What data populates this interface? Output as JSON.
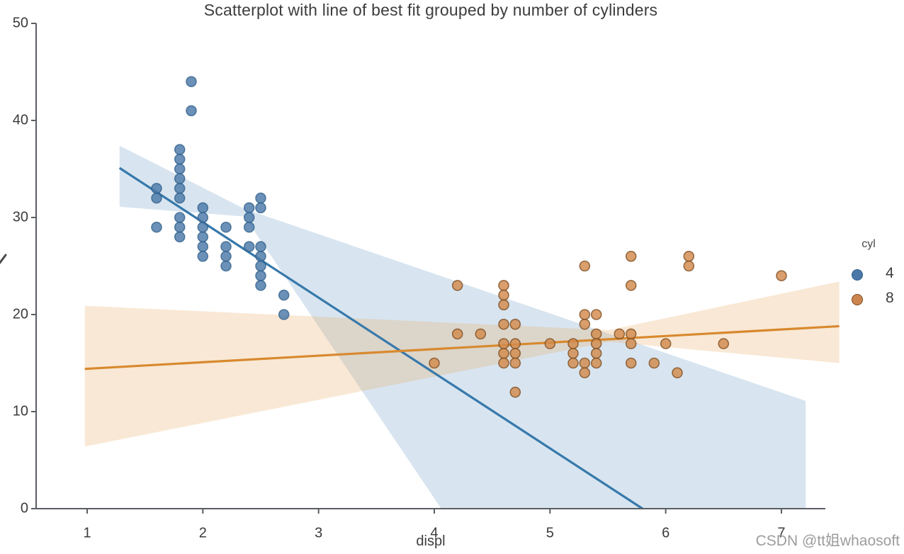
{
  "title": "Scatterplot with line of best fit grouped by number of cylinders",
  "x_axis_label": "displ",
  "watermark": "CSDN @tt姐whaosoft",
  "legend": {
    "title": "cyl",
    "items": [
      {
        "label": "4",
        "color": "#4a79a8"
      },
      {
        "label": "8",
        "color": "#cd8550"
      }
    ]
  },
  "axes": {
    "x_ticks": [
      "1",
      "2",
      "3",
      "4",
      "5",
      "6",
      "7"
    ],
    "y_ticks": [
      "0",
      "10",
      "20",
      "30",
      "40",
      "50"
    ]
  },
  "chart_data": {
    "type": "scatter",
    "title": "Scatterplot with line of best fit grouped by number of cylinders",
    "xlabel": "displ",
    "ylabel": "",
    "xlim": [
      0.56,
      7.38
    ],
    "ylim": [
      0,
      50
    ],
    "x_tick_values": [
      1,
      2,
      3,
      4,
      5,
      6,
      7
    ],
    "y_tick_values": [
      0,
      10,
      20,
      30,
      40,
      50
    ],
    "grid": false,
    "legend_position": "right",
    "series": [
      {
        "name": "4",
        "marker_color": "#4a79a8",
        "marker_edge_color": "#2f5f8a",
        "line_color": "#3779ab",
        "band_color": "#6f9ec7",
        "regression_line": {
          "x": [
            1.28,
            5.8
          ],
          "y": [
            35.1,
            0
          ]
        },
        "ci_polygon": [
          [
            1.28,
            37.4
          ],
          [
            2.36,
            30.9
          ],
          [
            7.21,
            11.1
          ],
          [
            7.21,
            0
          ],
          [
            4.06,
            0
          ],
          [
            2.36,
            30.1
          ],
          [
            1.28,
            31.1
          ]
        ],
        "points": [
          [
            1.6,
            33
          ],
          [
            1.6,
            32
          ],
          [
            1.6,
            29
          ],
          [
            1.8,
            37
          ],
          [
            1.8,
            36
          ],
          [
            1.8,
            35
          ],
          [
            1.8,
            34
          ],
          [
            1.8,
            33
          ],
          [
            1.8,
            32
          ],
          [
            1.8,
            30
          ],
          [
            1.8,
            29
          ],
          [
            1.8,
            28
          ],
          [
            1.9,
            44
          ],
          [
            1.9,
            41
          ],
          [
            2.0,
            31
          ],
          [
            2.0,
            30
          ],
          [
            2.0,
            29
          ],
          [
            2.0,
            28
          ],
          [
            2.0,
            27
          ],
          [
            2.0,
            26
          ],
          [
            2.2,
            29
          ],
          [
            2.2,
            27
          ],
          [
            2.2,
            26
          ],
          [
            2.2,
            25
          ],
          [
            2.4,
            31
          ],
          [
            2.4,
            30
          ],
          [
            2.4,
            29
          ],
          [
            2.4,
            27
          ],
          [
            2.5,
            32
          ],
          [
            2.5,
            31
          ],
          [
            2.5,
            27
          ],
          [
            2.5,
            26
          ],
          [
            2.5,
            25
          ],
          [
            2.5,
            24
          ],
          [
            2.5,
            23
          ],
          [
            2.7,
            22
          ],
          [
            2.7,
            20
          ]
        ]
      },
      {
        "name": "8",
        "marker_color": "#d28a4c",
        "marker_edge_color": "#7a4a1d",
        "line_color": "#d8892e",
        "band_color": "#eaa964",
        "regression_line": {
          "x": [
            0.98,
            7.5
          ],
          "y": [
            14.4,
            18.8
          ]
        },
        "ci_polygon": [
          [
            0.98,
            20.9
          ],
          [
            5.51,
            18.4
          ],
          [
            7.5,
            23.4
          ],
          [
            7.5,
            15.0
          ],
          [
            5.51,
            17.2
          ],
          [
            0.98,
            6.4
          ]
        ],
        "points": [
          [
            4.0,
            15
          ],
          [
            4.2,
            23
          ],
          [
            4.2,
            18
          ],
          [
            4.4,
            18
          ],
          [
            4.6,
            23
          ],
          [
            4.6,
            22
          ],
          [
            4.6,
            21
          ],
          [
            4.6,
            19
          ],
          [
            4.6,
            17
          ],
          [
            4.6,
            16
          ],
          [
            4.6,
            15
          ],
          [
            4.7,
            19
          ],
          [
            4.7,
            17
          ],
          [
            4.7,
            16
          ],
          [
            4.7,
            15
          ],
          [
            4.7,
            12
          ],
          [
            5.0,
            17
          ],
          [
            5.2,
            17
          ],
          [
            5.2,
            16
          ],
          [
            5.2,
            15
          ],
          [
            5.3,
            25
          ],
          [
            5.3,
            20
          ],
          [
            5.3,
            19
          ],
          [
            5.3,
            15
          ],
          [
            5.3,
            14
          ],
          [
            5.4,
            20
          ],
          [
            5.4,
            18
          ],
          [
            5.4,
            17
          ],
          [
            5.4,
            16
          ],
          [
            5.4,
            15
          ],
          [
            5.6,
            18
          ],
          [
            5.7,
            26
          ],
          [
            5.7,
            23
          ],
          [
            5.7,
            18
          ],
          [
            5.7,
            17
          ],
          [
            5.7,
            15
          ],
          [
            5.9,
            15
          ],
          [
            6.0,
            17
          ],
          [
            6.1,
            14
          ],
          [
            6.2,
            26
          ],
          [
            6.2,
            25
          ],
          [
            6.5,
            17
          ],
          [
            7.0,
            24
          ]
        ]
      }
    ]
  }
}
